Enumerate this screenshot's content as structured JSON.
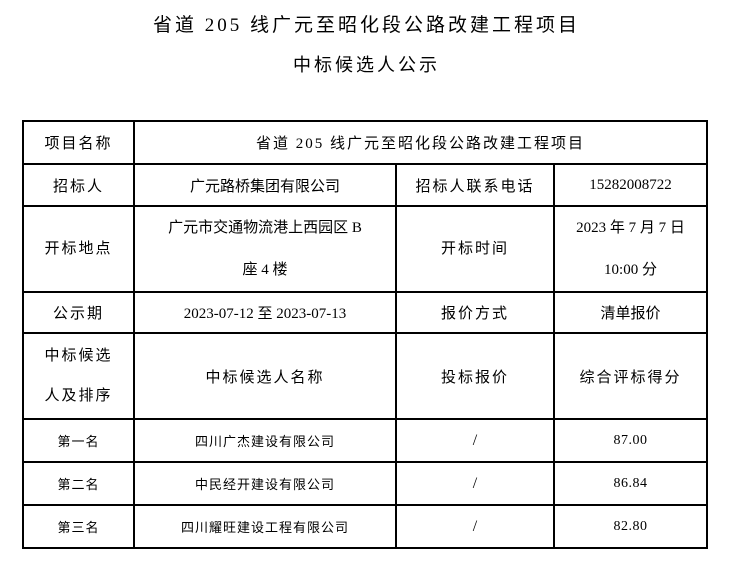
{
  "colors": {
    "background": "#ffffff",
    "text": "#000000",
    "table_border": "#000000"
  },
  "title": {
    "line1": "省道 205 线广元至昭化段公路改建工程项目",
    "line2": "中标候选人公示"
  },
  "info": {
    "project_name_label": "项目名称",
    "project_name_value": "省道 205 线广元至昭化段公路改建工程项目",
    "tenderer_label": "招标人",
    "tenderer_value": "广元路桥集团有限公司",
    "tenderer_phone_label": "招标人联系电话",
    "tenderer_phone_value": "15282008722",
    "opening_place_label": "开标地点",
    "opening_place_line1": "广元市交通物流港上西园区 B",
    "opening_place_line2": "座 4 楼",
    "opening_time_label": "开标时间",
    "opening_time_line1": "2023 年 7 月 7 日",
    "opening_time_line2": "10:00 分",
    "publicity_period_label": "公示期",
    "publicity_period_value": "2023-07-12 至 2023-07-13",
    "quote_method_label": "报价方式",
    "quote_method_value": "清单报价"
  },
  "candidates": {
    "header": {
      "rank_line1": "中标候选",
      "rank_line2": "人及排序",
      "name": "中标候选人名称",
      "price": "投标报价",
      "score": "综合评标得分"
    },
    "rows": [
      {
        "rank": "第一名",
        "name": "四川广杰建设有限公司",
        "price": "/",
        "score": "87.00"
      },
      {
        "rank": "第二名",
        "name": "中民经开建设有限公司",
        "price": "/",
        "score": "86.84"
      },
      {
        "rank": "第三名",
        "name": "四川耀旺建设工程有限公司",
        "price": "/",
        "score": "82.80"
      }
    ]
  }
}
